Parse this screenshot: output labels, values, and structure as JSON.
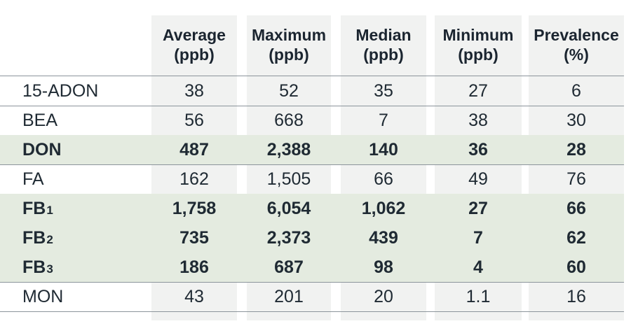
{
  "table": {
    "headers": [
      {
        "line1": "Average",
        "line2": "(ppb)"
      },
      {
        "line1": "Maximum",
        "line2": "(ppb)"
      },
      {
        "line1": "Median",
        "line2": "(ppb)"
      },
      {
        "line1": "Minimum",
        "line2": "(ppb)"
      },
      {
        "line1": "Prevalence",
        "line2": "(%)"
      }
    ],
    "rows": [
      {
        "name": "15-ADON",
        "sub": "",
        "values": [
          "38",
          "52",
          "35",
          "27",
          "6"
        ],
        "highlight": false
      },
      {
        "name": "BEA",
        "sub": "",
        "values": [
          "56",
          "668",
          "7",
          "38",
          "30"
        ],
        "highlight": false
      },
      {
        "name": "DON",
        "sub": "",
        "values": [
          "487",
          "2,388",
          "140",
          "36",
          "28"
        ],
        "highlight": true
      },
      {
        "name": "FA",
        "sub": "",
        "values": [
          "162",
          "1,505",
          "66",
          "49",
          "76"
        ],
        "highlight": false
      },
      {
        "name": "FB",
        "sub": "1",
        "values": [
          "1,758",
          "6,054",
          "1,062",
          "27",
          "66"
        ],
        "highlight": true
      },
      {
        "name": "FB",
        "sub": "2",
        "values": [
          "735",
          "2,373",
          "439",
          "7",
          "62"
        ],
        "highlight": true
      },
      {
        "name": "FB",
        "sub": "3",
        "values": [
          "186",
          "687",
          "98",
          "4",
          "60"
        ],
        "highlight": true
      },
      {
        "name": "MON",
        "sub": "",
        "values": [
          "43",
          "201",
          "20",
          "1.1",
          "16"
        ],
        "highlight": false
      }
    ]
  },
  "colors": {
    "column_shade": "#f1f2f1",
    "highlight_row": "#e4ebe0",
    "rule": "#8b949b",
    "text": "#1f2a33"
  }
}
